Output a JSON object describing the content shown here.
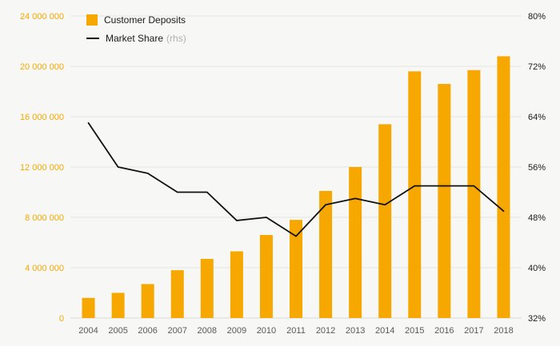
{
  "legend": {
    "deposits_label": "Customer Deposits",
    "share_label": "Market Share",
    "share_suffix": "(rhs)"
  },
  "chart_data": {
    "type": "bar",
    "title": "",
    "categories": [
      "2004",
      "2005",
      "2006",
      "2007",
      "2008",
      "2009",
      "2010",
      "2011",
      "2012",
      "2013",
      "2014",
      "2015",
      "2016",
      "2017",
      "2018"
    ],
    "series": [
      {
        "name": "Customer Deposits",
        "type": "bar",
        "axis": "left",
        "color": "#F7A800",
        "values": [
          1600000,
          2000000,
          2700000,
          3800000,
          4700000,
          5300000,
          6600000,
          7800000,
          10100000,
          12000000,
          15400000,
          19600000,
          18600000,
          19700000,
          20800000
        ]
      },
      {
        "name": "Market Share (rhs)",
        "type": "line",
        "axis": "right",
        "color": "#111111",
        "values": [
          63,
          56,
          55,
          52,
          52,
          47.5,
          48,
          45,
          50,
          51,
          50,
          53,
          53,
          53,
          49
        ]
      }
    ],
    "left_axis": {
      "min": 0,
      "max": 24000000,
      "step": 4000000,
      "color": "#F7A800",
      "labels": [
        "0",
        "4 000 000",
        "8 000 000",
        "12 000 000",
        "16 000 000",
        "20 000 000",
        "24 000 000"
      ]
    },
    "right_axis": {
      "min": 32,
      "max": 80,
      "step": 8,
      "color": "#1a1a1a",
      "labels": [
        "32%",
        "40%",
        "48%",
        "56%",
        "64%",
        "72%",
        "80%"
      ]
    },
    "grid": true,
    "legend_position": "top-left",
    "x_label_color": "#5a5a5a",
    "gridline_color": "#e4e4e2"
  }
}
